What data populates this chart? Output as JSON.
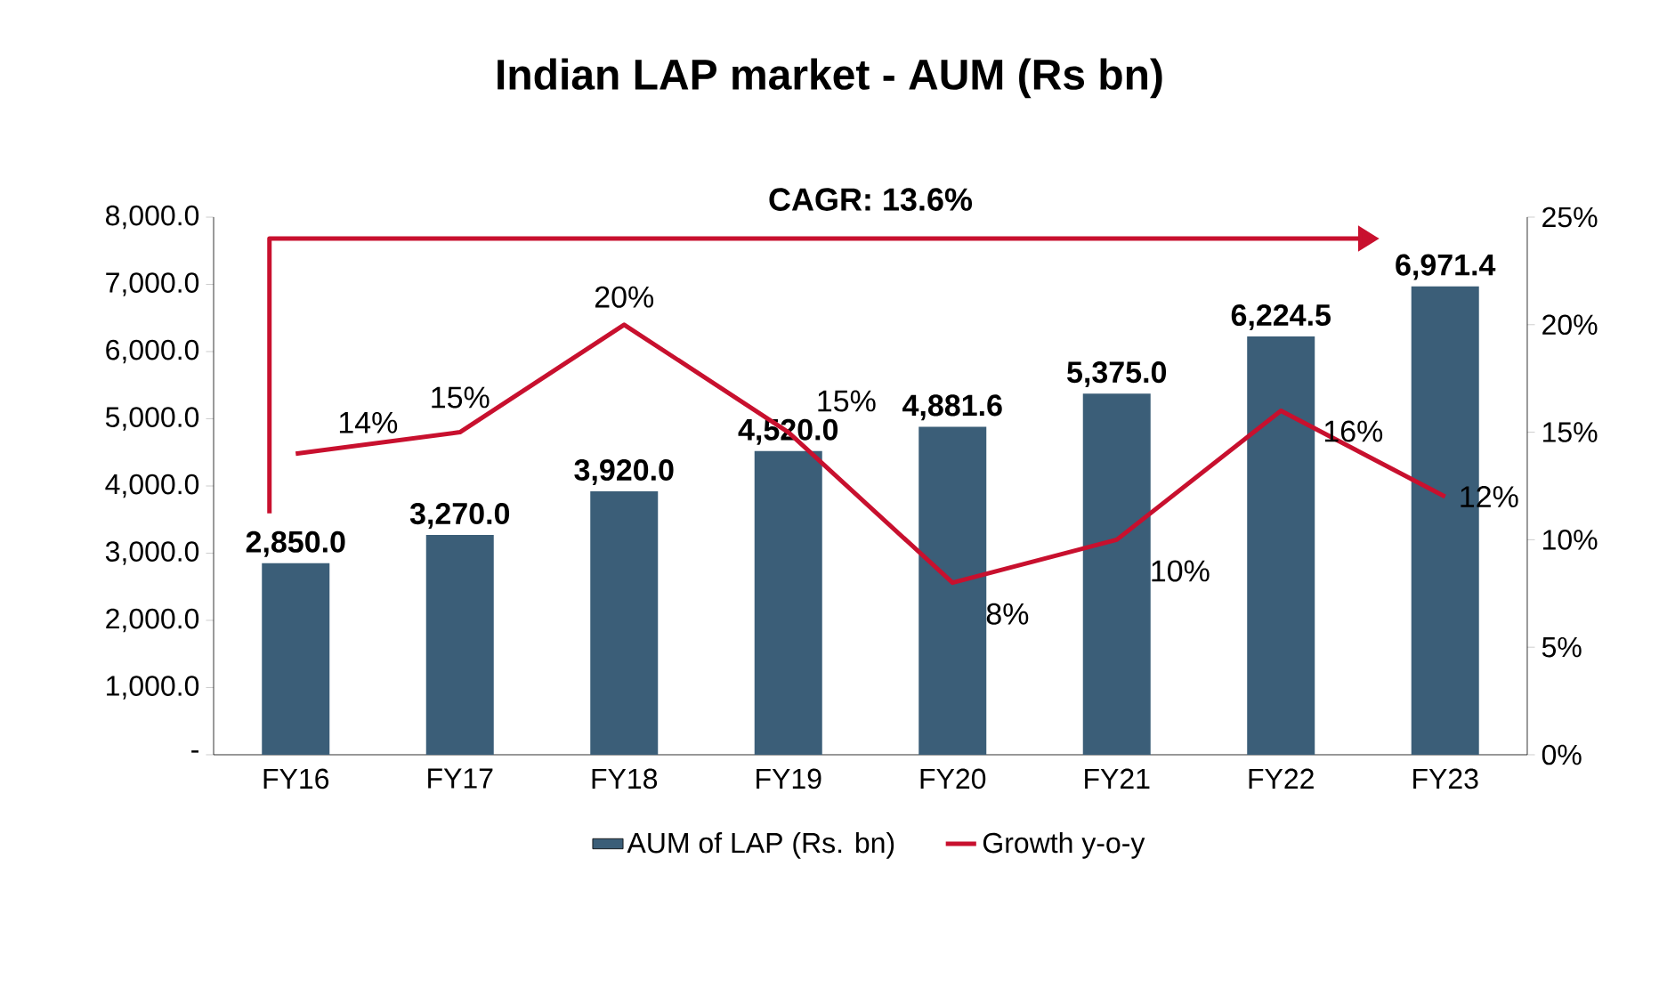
{
  "chart_data": {
    "type": "bar",
    "title": "Indian LAP market - AUM (Rs bn)",
    "categories": [
      "FY16",
      "FY17",
      "FY18",
      "FY19",
      "FY20",
      "FY21",
      "FY22",
      "FY23"
    ],
    "series": [
      {
        "name": "AUM of LAP (Rs. bn)",
        "color": "#3b5e78",
        "values": [
          2850.0,
          3270.0,
          3920.0,
          4520.0,
          4881.6,
          5375.0,
          6224.5,
          6971.4
        ],
        "value_labels": [
          "2,850.0",
          "3,270.0",
          "3,920.0",
          "4,520.0",
          "4,881.6",
          "5,375.0",
          "6,224.5",
          "6,971.4"
        ]
      },
      {
        "name": "Growth y-o-y",
        "type": "line",
        "axis": "y2",
        "color": "#c8102e",
        "values": [
          14,
          15,
          20,
          15,
          8,
          10,
          16,
          12
        ],
        "value_labels": [
          "14%",
          "15%",
          "20%",
          "15%",
          "8%",
          "10%",
          "16%",
          "12%"
        ]
      }
    ],
    "ylim": [
      0,
      8000
    ],
    "yticks": [
      {
        "value": 0,
        "label": "-"
      },
      {
        "value": 1000,
        "label": "1,000.0"
      },
      {
        "value": 2000,
        "label": "2,000.0"
      },
      {
        "value": 3000,
        "label": "3,000.0"
      },
      {
        "value": 4000,
        "label": "4,000.0"
      },
      {
        "value": 5000,
        "label": "5,000.0"
      },
      {
        "value": 6000,
        "label": "6,000.0"
      },
      {
        "value": 7000,
        "label": "7,000.0"
      },
      {
        "value": 8000,
        "label": "8,000.0"
      }
    ],
    "y2lim": [
      0,
      25
    ],
    "y2ticks": [
      {
        "value": 0,
        "label": "0%"
      },
      {
        "value": 5,
        "label": "5%"
      },
      {
        "value": 10,
        "label": "10%"
      },
      {
        "value": 15,
        "label": "15%"
      },
      {
        "value": 20,
        "label": "20%"
      },
      {
        "value": 25,
        "label": "25%"
      }
    ],
    "legend": "bottom",
    "annotations": [
      "CAGR: 13.6%"
    ]
  }
}
